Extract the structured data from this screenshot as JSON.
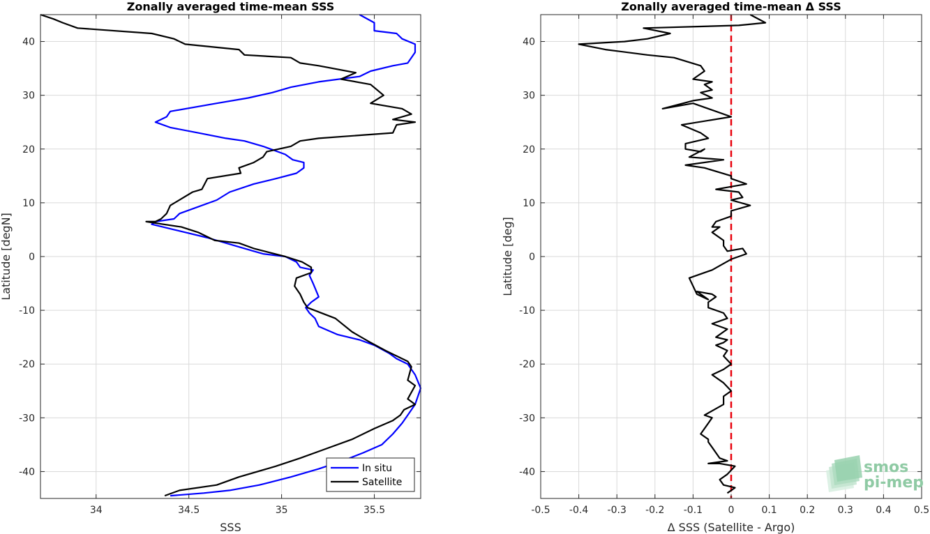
{
  "chart_data": [
    {
      "type": "line",
      "title": "Zonally averaged time-mean SSS",
      "xlabel": "SSS",
      "ylabel": "Latitude [degN]",
      "xlim": [
        33.7,
        35.75
      ],
      "ylim": [
        -45,
        45
      ],
      "xticks": [
        34,
        34.5,
        35,
        35.5
      ],
      "xtick_labels": [
        "34",
        "34.5",
        "35",
        "35.5"
      ],
      "yticks": [
        -40,
        -30,
        -20,
        -10,
        0,
        10,
        20,
        30,
        40
      ],
      "ytick_labels": [
        "-40",
        "-30",
        "-20",
        "-10",
        "0",
        "10",
        "20",
        "30",
        "40"
      ],
      "grid": true,
      "legend": "bottom-right",
      "series": [
        {
          "name": "In situ",
          "color": "#0000ff",
          "x": [
            35.42,
            35.5,
            35.5,
            35.62,
            35.65,
            35.72,
            35.72,
            35.7,
            35.68,
            35.6,
            35.48,
            35.42,
            35.2,
            35.05,
            34.95,
            34.82,
            34.65,
            34.4,
            34.38,
            34.32,
            34.4,
            34.55,
            34.7,
            34.8,
            34.9,
            35.02,
            35.06,
            35.12,
            35.12,
            35.08,
            34.97,
            34.85,
            34.72,
            34.65,
            34.45,
            34.42,
            34.32,
            34.3,
            34.42,
            34.6,
            34.75,
            34.85,
            34.9,
            35.02,
            35.08,
            35.1,
            35.17,
            35.15,
            35.17,
            35.2,
            35.16,
            35.13,
            35.15,
            35.18,
            35.2,
            35.3,
            35.42,
            35.5,
            35.58,
            35.62,
            35.68,
            35.72,
            35.75,
            35.72,
            35.68,
            35.65,
            35.6,
            35.54,
            35.44,
            35.33,
            35.2,
            35.05,
            34.88,
            34.72,
            34.58,
            34.4
          ],
          "y": [
            45,
            43.5,
            42,
            41.5,
            40.5,
            39.5,
            38,
            37,
            36,
            35.5,
            34.5,
            33.5,
            32.5,
            31.5,
            30.5,
            29.5,
            28.5,
            27,
            26,
            25,
            24,
            23,
            22,
            21.5,
            20.5,
            19,
            18,
            17.5,
            16.5,
            15.5,
            14.5,
            13.5,
            12,
            10.5,
            8,
            7,
            6.5,
            6,
            5,
            3.5,
            2,
            1,
            0.5,
            0,
            -1,
            -2,
            -2.5,
            -3.5,
            -5,
            -7.5,
            -8.5,
            -9.5,
            -10.5,
            -11.5,
            -13,
            -14.5,
            -15.5,
            -16.5,
            -18,
            -19,
            -20,
            -22,
            -24.5,
            -27.5,
            -29.5,
            -31,
            -33,
            -35,
            -36.5,
            -38,
            -39.5,
            -41,
            -42.5,
            -43.5,
            -44,
            -44.5
          ]
        },
        {
          "name": "Satellite",
          "color": "#000000",
          "x": [
            33.7,
            33.77,
            33.82,
            33.9,
            34.3,
            34.42,
            34.48,
            34.77,
            34.8,
            35.05,
            35.1,
            35.2,
            35.4,
            35.32,
            35.48,
            35.55,
            35.48,
            35.65,
            35.7,
            35.6,
            35.72,
            35.62,
            35.6,
            35.2,
            35.1,
            35.05,
            34.92,
            34.9,
            34.85,
            34.77,
            34.78,
            34.6,
            34.57,
            34.52,
            34.4,
            34.38,
            34.35,
            34.32,
            34.27,
            34.46,
            34.55,
            34.64,
            34.77,
            34.85,
            35.02,
            35.11,
            35.16,
            35.16,
            35.08,
            35.07,
            35.1,
            35.12,
            35.14,
            35.29,
            35.38,
            35.48,
            35.56,
            35.68,
            35.7,
            35.68,
            35.72,
            35.68,
            35.72,
            35.66,
            35.64,
            35.6,
            35.5,
            35.38,
            35.22,
            35.1,
            34.97,
            34.77,
            34.65,
            34.45,
            34.37
          ],
          "y": [
            45,
            44.2,
            43.5,
            42.5,
            41.5,
            40.5,
            39.5,
            38.5,
            37.5,
            37,
            36,
            35.5,
            34.2,
            33,
            32,
            30,
            28.5,
            27.5,
            26.5,
            25.5,
            25,
            24.5,
            23,
            22,
            21.5,
            20.5,
            19.5,
            18.5,
            17.5,
            16.5,
            15.5,
            14.5,
            12.5,
            12,
            9.5,
            8,
            7,
            6.5,
            6.5,
            5.5,
            4.5,
            3,
            2.5,
            1.5,
            0,
            -1,
            -2,
            -3,
            -4,
            -5.5,
            -7,
            -8.5,
            -9.5,
            -11.5,
            -14,
            -16,
            -17.5,
            -19.5,
            -20.5,
            -23,
            -24,
            -26.5,
            -27.5,
            -28.5,
            -29.5,
            -30.5,
            -32,
            -34,
            -36,
            -37.5,
            -39,
            -41,
            -42.5,
            -43.5,
            -44.5
          ]
        }
      ]
    },
    {
      "type": "line",
      "title": "Zonally averaged time-mean Δ SSS",
      "xlabel": "Δ SSS (Satellite - Argo)",
      "ylabel": "Latitude [deg]",
      "xlim": [
        -0.5,
        0.5
      ],
      "ylim": [
        -45,
        45
      ],
      "xticks": [
        -0.5,
        -0.4,
        -0.3,
        -0.2,
        -0.1,
        0,
        0.1,
        0.2,
        0.3,
        0.4,
        0.5
      ],
      "xtick_labels": [
        "-0.5",
        "-0.4",
        "-0.3",
        "-0.2",
        "-0.1",
        "0",
        "0.1",
        "0.2",
        "0.3",
        "0.4",
        "0.5"
      ],
      "yticks": [
        -40,
        -30,
        -20,
        -10,
        0,
        10,
        20,
        30,
        40
      ],
      "ytick_labels": [
        "-40",
        "-30",
        "-20",
        "-10",
        "0",
        "10",
        "20",
        "30",
        "40"
      ],
      "grid": true,
      "series": [
        {
          "color": "#000000",
          "x": [
            0.05,
            0.09,
            0.02,
            -0.23,
            -0.16,
            -0.22,
            -0.28,
            -0.4,
            -0.33,
            -0.22,
            -0.15,
            -0.08,
            -0.07,
            -0.1,
            -0.05,
            -0.07,
            -0.05,
            -0.08,
            -0.05,
            -0.1,
            -0.18,
            -0.1,
            0.0,
            -0.13,
            -0.08,
            -0.06,
            -0.12,
            -0.12,
            -0.08,
            -0.07,
            -0.11,
            -0.02,
            -0.12,
            -0.07,
            0.0,
            0.0,
            0.04,
            -0.04,
            0.02,
            0.03,
            0.0,
            0.05,
            0.0,
            0.0,
            -0.04,
            -0.05,
            -0.03,
            -0.05,
            -0.02,
            -0.02,
            -0.01,
            0.03,
            0.04,
            0.0,
            -0.05,
            -0.11,
            -0.09,
            -0.06,
            -0.09,
            -0.05,
            -0.04,
            -0.06,
            -0.06,
            -0.02,
            -0.01,
            -0.05,
            -0.01,
            -0.04,
            -0.01,
            -0.02,
            -0.04,
            -0.01,
            -0.02,
            0.0,
            -0.02,
            -0.05,
            -0.02,
            0.0,
            -0.02,
            -0.02,
            -0.07,
            -0.05,
            -0.08,
            -0.06,
            -0.06,
            -0.05,
            -0.03,
            -0.01,
            -0.06,
            -0.03,
            0.01,
            -0.01,
            -0.03,
            -0.02,
            0.01,
            -0.01
          ],
          "y": [
            45,
            43.5,
            43,
            42.5,
            41.5,
            40.5,
            40,
            39.5,
            38.5,
            37.5,
            37,
            35.5,
            34.5,
            33,
            32.5,
            32,
            31,
            30.5,
            29.5,
            29,
            27.5,
            28.5,
            26,
            24.5,
            23,
            22,
            21,
            20,
            19.5,
            20,
            18.5,
            18,
            17,
            16.5,
            15,
            14.5,
            13.5,
            12.5,
            12,
            11,
            10.5,
            9.5,
            8.5,
            7.5,
            6.5,
            5.5,
            5.5,
            4.5,
            3,
            2,
            1,
            1.5,
            0.5,
            -0.5,
            -2.5,
            -4,
            -7,
            -8,
            -6.5,
            -7,
            -7.5,
            -8.5,
            -9.5,
            -10.5,
            -11.5,
            -12.5,
            -13.5,
            -15,
            -15.5,
            -16,
            -16.5,
            -17.5,
            -18.5,
            -20,
            -21,
            -22,
            -23.5,
            -25,
            -26,
            -27.5,
            -29.5,
            -30,
            -33,
            -34,
            -34.5,
            -35.5,
            -37.5,
            -38,
            -38.5,
            -38.5,
            -39,
            -40.5,
            -41.5,
            -42.5,
            -43,
            -44
          ]
        }
      ],
      "reference_line": {
        "x": 0,
        "color": "#e8000b",
        "style": "dashed"
      }
    }
  ],
  "logo": {
    "line1": "smos",
    "line2": "pi-mep"
  }
}
